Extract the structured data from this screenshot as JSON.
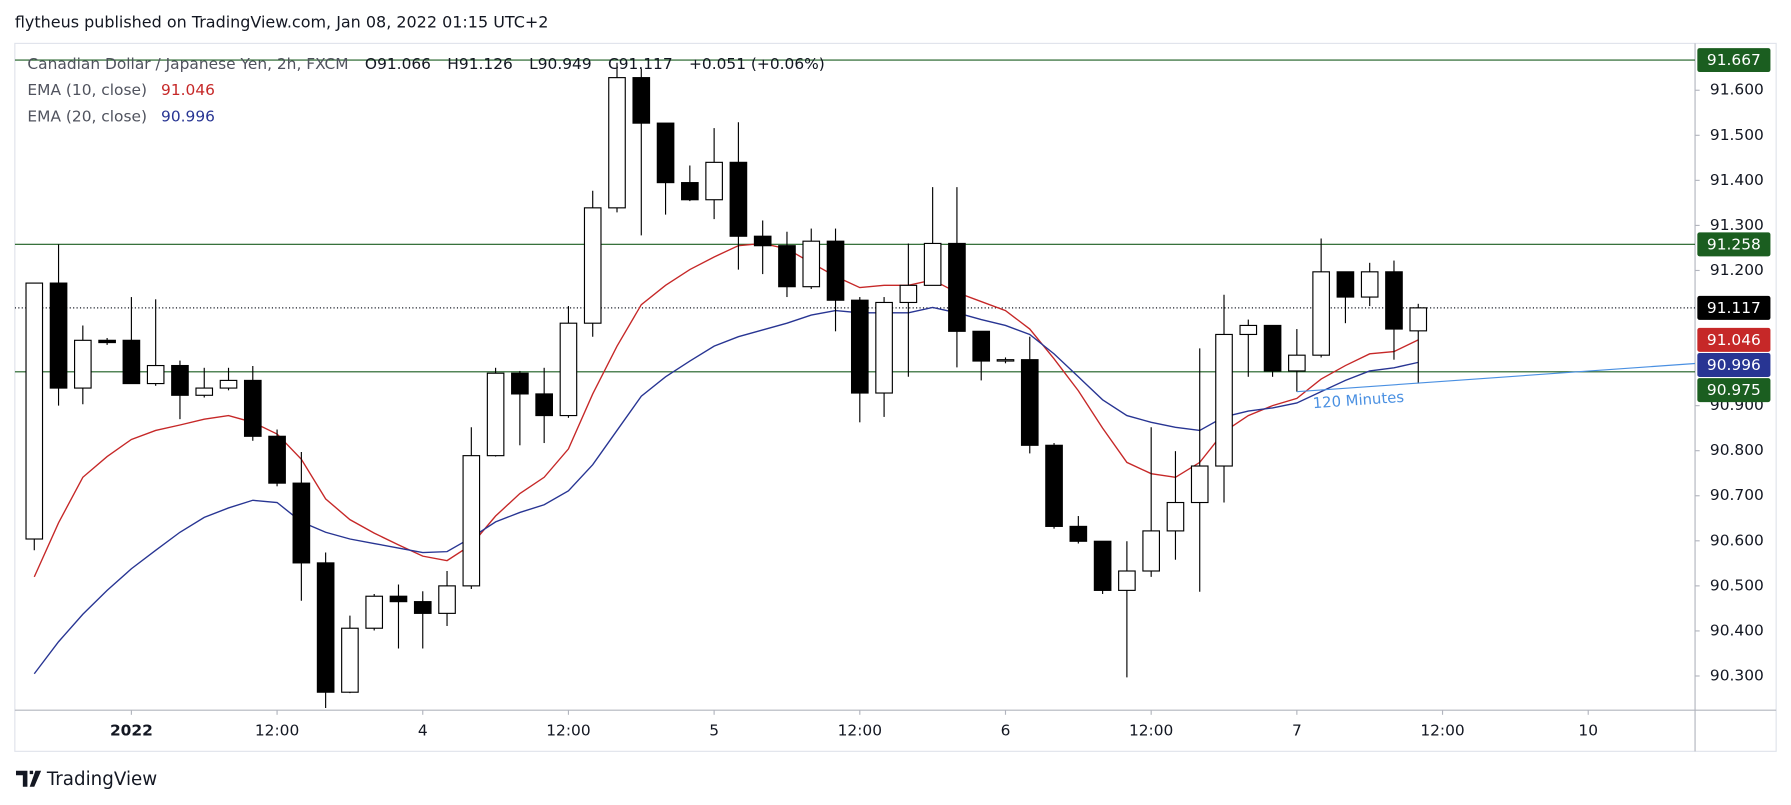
{
  "header": {
    "text": "flytheus published on TradingView.com, Jan 08, 2022 01:15 UTC+2"
  },
  "footer": {
    "brand": "TradingView"
  },
  "chart_data": {
    "type": "candlestick",
    "title": "Canadian Dollar / Japanese Yen, 2h, FXCM",
    "ohlc_legend": [
      "O91.066",
      "H91.126",
      "L90.949",
      "C91.117"
    ],
    "change": "+0.051 (+0.06%)",
    "up_color": "#ffffff",
    "down_color": "#000000",
    "x": [
      -4,
      -3,
      -2,
      -1,
      0,
      1,
      2,
      3,
      4,
      5,
      6,
      7,
      8,
      9,
      10,
      11,
      12,
      13,
      14,
      15,
      16,
      17,
      18,
      19,
      20,
      21,
      22,
      23,
      24,
      25,
      26,
      27,
      28,
      29,
      30,
      31,
      32,
      33,
      34,
      35,
      36,
      37,
      38,
      39,
      40,
      41,
      42,
      43,
      44,
      45,
      46,
      47,
      48,
      49,
      50,
      51,
      52,
      53
    ],
    "open": [
      90.604,
      91.172,
      90.939,
      91.045,
      91.045,
      90.949,
      90.989,
      90.923,
      90.939,
      90.956,
      90.832,
      90.728,
      90.551,
      90.264,
      90.406,
      90.477,
      90.465,
      90.439,
      90.5,
      90.789,
      90.972,
      90.926,
      90.878,
      91.083,
      91.339,
      91.628,
      91.527,
      91.395,
      91.357,
      91.44,
      91.276,
      91.255,
      91.164,
      91.265,
      91.134,
      90.928,
      91.129,
      91.167,
      91.26,
      91.065,
      90.999,
      91.002,
      90.812,
      90.632,
      90.599,
      90.49,
      90.533,
      90.622,
      90.685,
      90.766,
      91.058,
      91.078,
      90.977,
      91.012,
      91.197,
      91.141,
      91.197,
      91.066
    ],
    "high": [
      91.172,
      91.258,
      91.078,
      91.05,
      91.141,
      91.136,
      91.0,
      90.984,
      90.984,
      90.988,
      90.847,
      90.797,
      90.574,
      90.434,
      90.482,
      90.503,
      90.488,
      90.533,
      90.852,
      90.984,
      90.977,
      90.984,
      91.121,
      91.377,
      91.661,
      91.648,
      91.527,
      91.433,
      91.516,
      91.529,
      91.311,
      91.286,
      91.293,
      91.293,
      91.141,
      91.141,
      91.26,
      91.385,
      91.385,
      91.065,
      91.007,
      91.053,
      90.817,
      90.655,
      90.599,
      90.599,
      90.852,
      90.799,
      91.027,
      91.146,
      91.091,
      91.078,
      91.07,
      91.271,
      91.197,
      91.217,
      91.222,
      91.126
    ],
    "low": [
      90.579,
      90.9,
      90.903,
      91.035,
      90.949,
      90.944,
      90.87,
      90.918,
      90.934,
      90.822,
      90.721,
      90.467,
      90.229,
      90.262,
      90.401,
      90.361,
      90.361,
      90.411,
      90.493,
      90.787,
      90.812,
      90.817,
      90.873,
      91.053,
      91.329,
      91.278,
      91.324,
      91.354,
      91.314,
      91.202,
      91.192,
      91.141,
      91.159,
      91.065,
      90.863,
      90.875,
      90.964,
      91.167,
      90.985,
      90.956,
      90.994,
      90.794,
      90.627,
      90.594,
      90.482,
      90.297,
      90.52,
      90.558,
      90.487,
      90.685,
      90.964,
      90.964,
      90.931,
      91.007,
      91.083,
      91.121,
      91.002,
      90.949
    ],
    "close": [
      91.172,
      90.939,
      91.045,
      91.04,
      90.949,
      90.989,
      90.923,
      90.939,
      90.956,
      90.832,
      90.728,
      90.551,
      90.264,
      90.406,
      90.477,
      90.465,
      90.439,
      90.5,
      90.789,
      90.972,
      90.926,
      90.878,
      91.083,
      91.339,
      91.628,
      91.527,
      91.395,
      91.357,
      91.44,
      91.276,
      91.255,
      91.164,
      91.265,
      91.134,
      90.928,
      91.129,
      91.167,
      91.26,
      91.065,
      90.999,
      91.002,
      90.812,
      90.632,
      90.599,
      90.49,
      90.533,
      90.622,
      90.685,
      90.766,
      91.058,
      91.078,
      90.977,
      91.012,
      91.197,
      91.141,
      91.197,
      91.07,
      91.117
    ],
    "last_price_color": "#000000",
    "series": [
      {
        "name": "EMA (10, close)",
        "color": "#c62828",
        "values": [
          90.52,
          90.64,
          90.741,
          90.787,
          90.825,
          90.845,
          90.857,
          90.87,
          90.878,
          90.863,
          90.837,
          90.781,
          90.693,
          90.647,
          90.617,
          90.591,
          90.566,
          90.556,
          90.591,
          90.655,
          90.705,
          90.741,
          90.804,
          90.926,
          91.032,
          91.124,
          91.167,
          91.202,
          91.23,
          91.255,
          91.26,
          91.248,
          91.217,
          91.187,
          91.162,
          91.167,
          91.167,
          91.179,
          91.151,
          91.131,
          91.111,
          91.07,
          91.004,
          90.933,
          90.85,
          90.774,
          90.749,
          90.741,
          90.774,
          90.842,
          90.878,
          90.9,
          90.916,
          90.959,
          90.989,
          91.015,
          91.02,
          91.046
        ]
      },
      {
        "name": "EMA (20, close)",
        "color": "#283593",
        "values": [
          90.305,
          90.376,
          90.437,
          90.49,
          90.538,
          90.579,
          90.619,
          90.652,
          90.673,
          90.69,
          90.685,
          90.642,
          90.619,
          90.604,
          90.594,
          90.584,
          90.574,
          90.576,
          90.607,
          90.642,
          90.663,
          90.68,
          90.711,
          90.769,
          90.845,
          90.921,
          90.964,
          90.999,
          91.032,
          91.053,
          91.068,
          91.083,
          91.101,
          91.111,
          91.106,
          91.106,
          91.106,
          91.118,
          91.106,
          91.091,
          91.078,
          91.058,
          91.015,
          90.964,
          90.913,
          90.878,
          90.863,
          90.852,
          90.845,
          90.875,
          90.888,
          90.895,
          90.906,
          90.931,
          90.956,
          90.977,
          90.984,
          90.996
        ]
      }
    ],
    "hlines": [
      {
        "value": 91.667,
        "color": "#1b5e20"
      },
      {
        "value": 91.258,
        "color": "#1b5e20"
      },
      {
        "value": 90.975,
        "color": "#1b5e20"
      }
    ],
    "trendline": {
      "label": "120 Minutes",
      "color": "#4a90e2",
      "x": [
        48,
        64
      ],
      "y": [
        90.931,
        90.992
      ]
    },
    "xlim": [
      -4.8,
      64.4
    ],
    "ylim": [
      90.224,
      91.704
    ],
    "xticks": [
      {
        "value": 0,
        "label": "2022"
      },
      {
        "value": 6,
        "label": "12:00"
      },
      {
        "value": 12,
        "label": "4"
      },
      {
        "value": 18,
        "label": "12:00"
      },
      {
        "value": 24,
        "label": "5"
      },
      {
        "value": 30,
        "label": "12:00"
      },
      {
        "value": 36,
        "label": "6"
      },
      {
        "value": 42,
        "label": "12:00"
      },
      {
        "value": 48,
        "label": "7"
      },
      {
        "value": 54,
        "label": "12:00"
      },
      {
        "value": 60,
        "label": "10"
      }
    ],
    "yticks": [
      {
        "value": 91.6,
        "label": "91.600"
      },
      {
        "value": 91.5,
        "label": "91.500"
      },
      {
        "value": 91.4,
        "label": "91.400"
      },
      {
        "value": 91.3,
        "label": "91.300"
      },
      {
        "value": 91.2,
        "label": "91.200"
      },
      {
        "value": 90.9,
        "label": "90.900"
      },
      {
        "value": 90.8,
        "label": "90.800"
      },
      {
        "value": 90.7,
        "label": "90.700"
      },
      {
        "value": 90.6,
        "label": "90.600"
      },
      {
        "value": 90.5,
        "label": "90.500"
      },
      {
        "value": 90.4,
        "label": "90.400"
      },
      {
        "value": 90.3,
        "label": "90.300"
      }
    ]
  }
}
